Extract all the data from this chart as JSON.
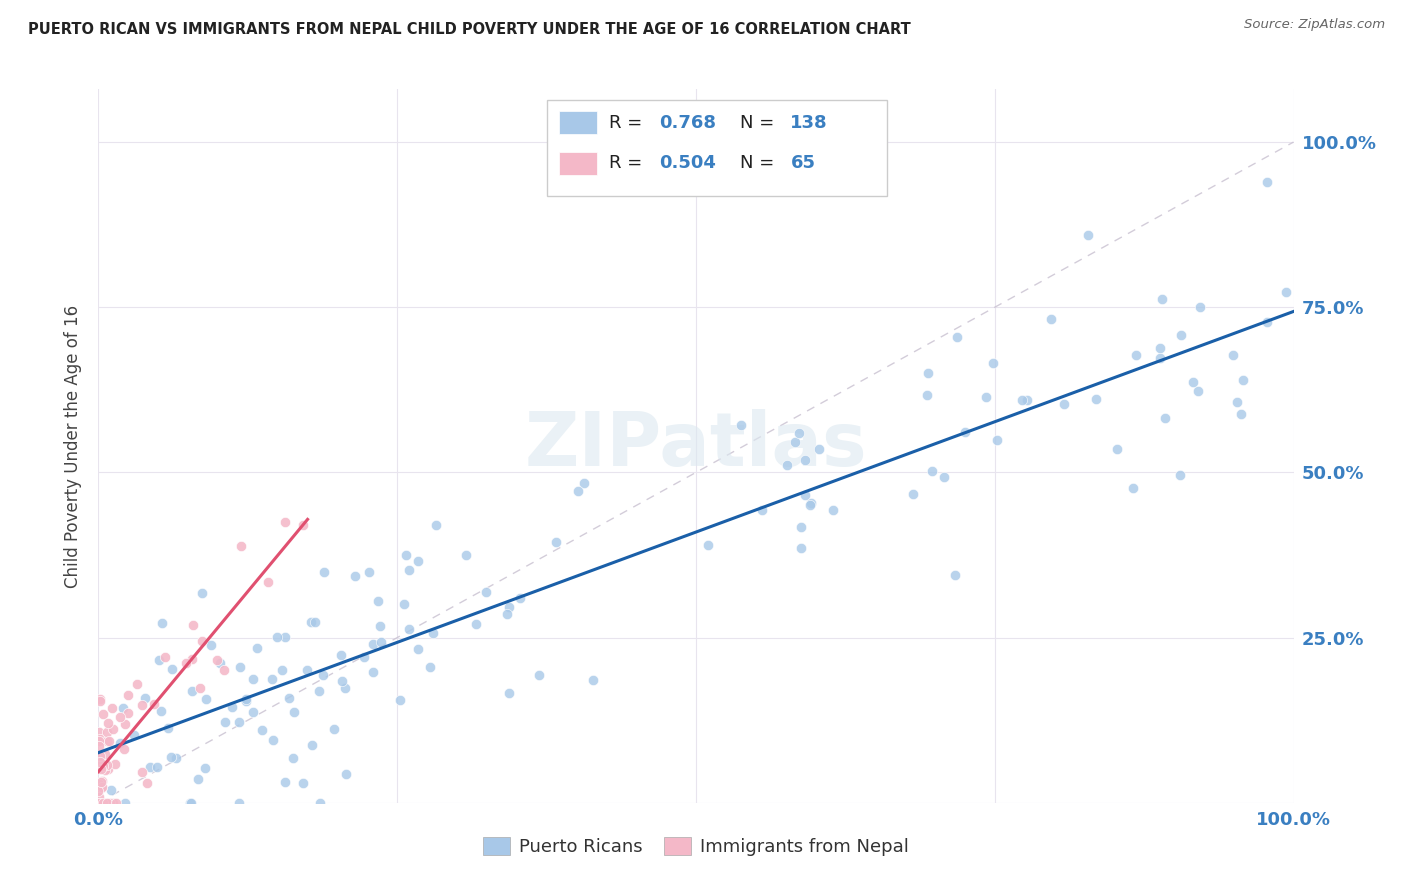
{
  "title": "PUERTO RICAN VS IMMIGRANTS FROM NEPAL CHILD POVERTY UNDER THE AGE OF 16 CORRELATION CHART",
  "source": "Source: ZipAtlas.com",
  "ylabel": "Child Poverty Under the Age of 16",
  "legend_blue_r": "0.768",
  "legend_blue_n": "138",
  "legend_pink_r": "0.504",
  "legend_pink_n": "65",
  "legend_label_blue": "Puerto Ricans",
  "legend_label_pink": "Immigrants from Nepal",
  "blue_scatter_color": "#a8c8e8",
  "pink_scatter_color": "#f4b8c8",
  "blue_line_color": "#1a5fa8",
  "pink_line_color": "#e05070",
  "diagonal_color": "#c8c0d0",
  "axis_label_color": "#3a7fc1",
  "background": "#ffffff",
  "grid_color": "#e8e4ee",
  "title_color": "#222222",
  "watermark": "ZIPatlas",
  "xlim": [
    0,
    1
  ],
  "ylim": [
    0,
    1.08
  ]
}
